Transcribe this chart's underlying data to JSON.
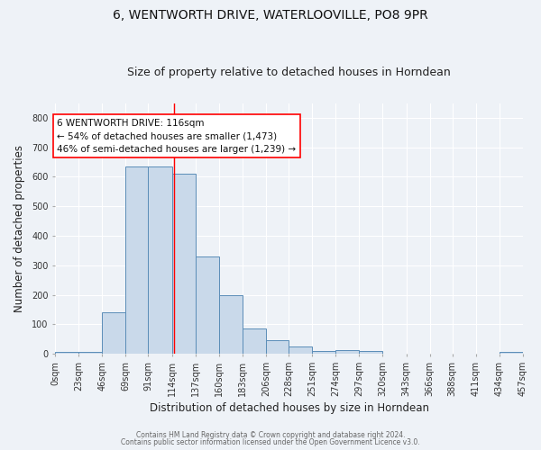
{
  "title1": "6, WENTWORTH DRIVE, WATERLOOVILLE, PO8 9PR",
  "title2": "Size of property relative to detached houses in Horndean",
  "xlabel": "Distribution of detached houses by size in Horndean",
  "ylabel": "Number of detached properties",
  "bar_edges": [
    0,
    23,
    46,
    69,
    91,
    114,
    137,
    160,
    183,
    206,
    228,
    251,
    274,
    297,
    320,
    343,
    366,
    388,
    411,
    434,
    457
  ],
  "bar_heights": [
    5,
    5,
    140,
    635,
    635,
    610,
    330,
    200,
    85,
    45,
    25,
    10,
    12,
    8,
    0,
    0,
    0,
    0,
    0,
    5
  ],
  "bar_color": "#c9d9ea",
  "bar_edge_color": "#5b8db8",
  "red_line_x": 116,
  "annotation_title": "6 WENTWORTH DRIVE: 116sqm",
  "annotation_line1": "← 54% of detached houses are smaller (1,473)",
  "annotation_line2": "46% of semi-detached houses are larger (1,239) →",
  "yticks": [
    0,
    100,
    200,
    300,
    400,
    500,
    600,
    700,
    800
  ],
  "xtick_labels": [
    "0sqm",
    "23sqm",
    "46sqm",
    "69sqm",
    "91sqm",
    "114sqm",
    "137sqm",
    "160sqm",
    "183sqm",
    "206sqm",
    "228sqm",
    "251sqm",
    "274sqm",
    "297sqm",
    "320sqm",
    "343sqm",
    "366sqm",
    "388sqm",
    "411sqm",
    "434sqm",
    "457sqm"
  ],
  "footer1": "Contains HM Land Registry data © Crown copyright and database right 2024.",
  "footer2": "Contains public sector information licensed under the Open Government Licence v3.0.",
  "bg_color": "#eef2f7",
  "grid_color": "#ffffff",
  "title1_fontsize": 10,
  "title2_fontsize": 9,
  "axis_label_fontsize": 8.5,
  "tick_fontsize": 7,
  "ylim": [
    0,
    850
  ],
  "annotation_fontsize": 7.5
}
